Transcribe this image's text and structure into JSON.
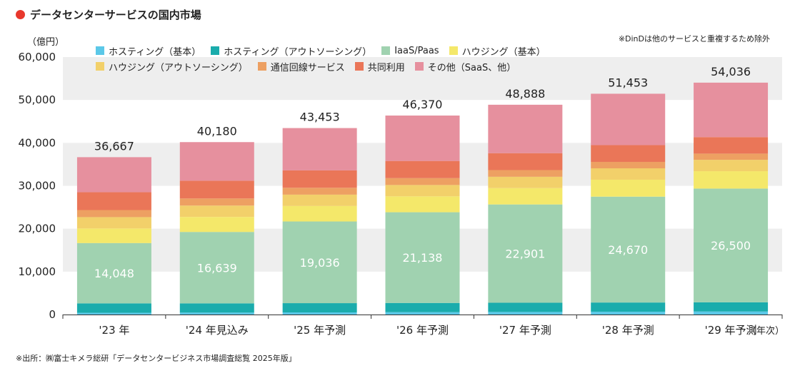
{
  "header": {
    "title": "データセンターサービスの国内市場",
    "note": "※DinDは他のサービスと重複するため除外",
    "source": "※出所：㈱富士キメラ総研「データセンタービジネス市場調査総覧 2025年版」"
  },
  "chart_data": {
    "type": "bar",
    "stacked": true,
    "ylabel": "（億円）",
    "xunit": "（年次）",
    "ylim": [
      0,
      60000
    ],
    "yticks": [
      "0",
      "10,000",
      "20,000",
      "30,000",
      "40,000",
      "50,000",
      "60,000"
    ],
    "grid": "alternating bands",
    "legend_position": "top-left",
    "categories": [
      "'23 年",
      "'24 年見込み",
      "'25 年予測",
      "'26 年予測",
      "'27 年予測",
      "'28 年予測",
      "'29 年予測"
    ],
    "totals": [
      36667,
      40180,
      43453,
      46370,
      48888,
      51453,
      54036
    ],
    "total_labels": [
      "36,667",
      "40,180",
      "43,453",
      "46,370",
      "48,888",
      "51,453",
      "54,036"
    ],
    "series": [
      {
        "name": "ホスティング（基本）",
        "color": "#5bc8e8",
        "values": [
          400,
          450,
          500,
          550,
          600,
          650,
          700
        ]
      },
      {
        "name": "ホスティング（アウトソーシング）",
        "color": "#1aacac",
        "values": [
          2200,
          2150,
          2150,
          2150,
          2150,
          2150,
          2150
        ]
      },
      {
        "name": "IaaS/Paas",
        "color": "#a0d2b0",
        "values": [
          14048,
          16639,
          19036,
          21138,
          22901,
          24670,
          26500
        ],
        "labels": [
          "14,048",
          "16,639",
          "19,036",
          "21,138",
          "22,901",
          "24,670",
          "26,500"
        ]
      },
      {
        "name": "ハウジング（基本）",
        "color": "#f4e86a",
        "values": [
          3400,
          3500,
          3600,
          3700,
          3800,
          3950,
          4050
        ]
      },
      {
        "name": "ハウジング（アウトソーシング）",
        "color": "#f2d06a",
        "values": [
          2650,
          2650,
          2650,
          2650,
          2650,
          2650,
          2650
        ]
      },
      {
        "name": "通信回線サービス",
        "color": "#eda062",
        "values": [
          1650,
          1650,
          1600,
          1600,
          1550,
          1500,
          1450
        ]
      },
      {
        "name": "共同利用",
        "color": "#ea7658",
        "values": [
          4150,
          4150,
          4050,
          4000,
          3950,
          3900,
          3850
        ]
      },
      {
        "name": "その他（SaaS、他）",
        "color": "#e6909e",
        "values": [
          8169,
          8991,
          9867,
          10582,
          11287,
          11983,
          12686
        ]
      }
    ]
  }
}
